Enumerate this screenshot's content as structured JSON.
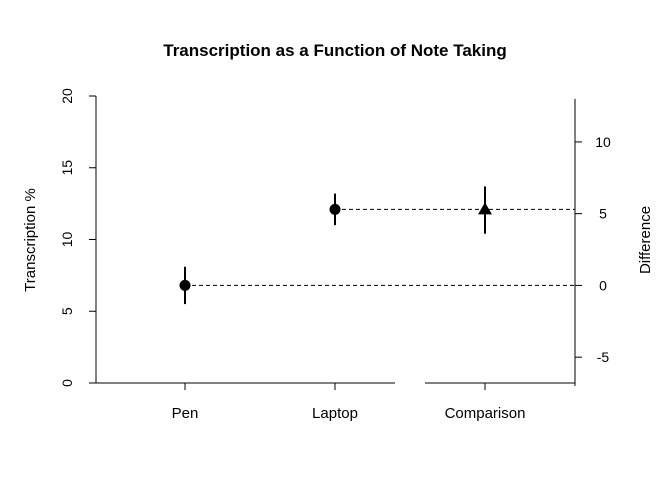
{
  "chart_data": {
    "type": "scatter",
    "title": "Transcription as a Function of Note Taking",
    "xlabel": "",
    "ylabel": "Transcription %",
    "y2label": "Difference",
    "categories": [
      "Pen",
      "Laptop",
      "Comparison"
    ],
    "ylim": [
      0,
      20
    ],
    "yticks": [
      0,
      5,
      10,
      15,
      20
    ],
    "y2lim": [
      -7,
      13
    ],
    "y2ticks": [
      -5,
      0,
      5,
      10
    ],
    "grid": false,
    "groups": [
      {
        "category": "Pen",
        "value": 6.8,
        "ci": [
          5.5,
          8.1
        ],
        "marker": "circle"
      },
      {
        "category": "Laptop",
        "value": 12.1,
        "ci": [
          11.0,
          13.2
        ],
        "marker": "circle"
      }
    ],
    "difference": {
      "category": "Comparison",
      "value": 5.3,
      "ci": [
        3.6,
        6.9
      ],
      "marker": "triangle"
    }
  }
}
